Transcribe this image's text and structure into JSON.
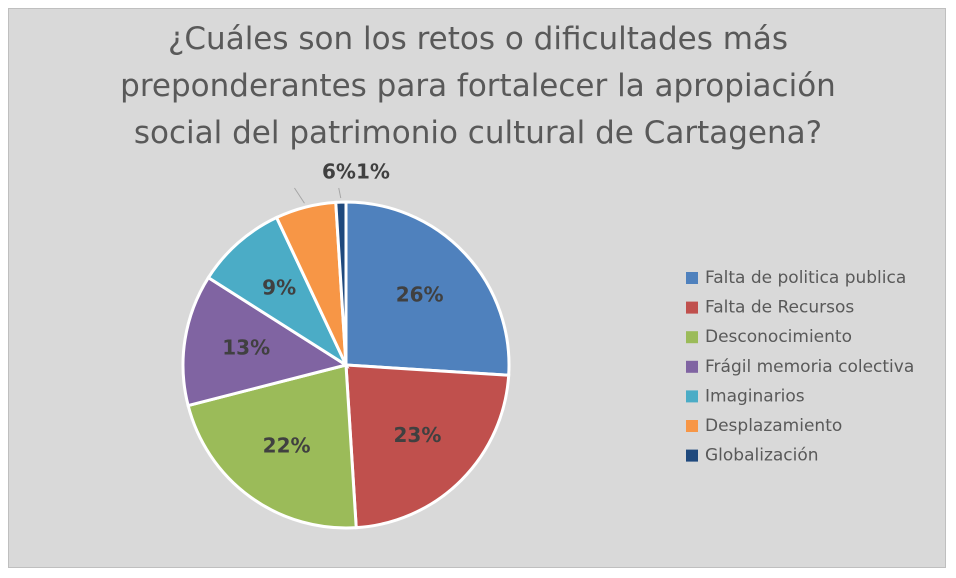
{
  "chart_data": {
    "type": "pie",
    "title": "¿Cuáles son los retos o dificultades más preponderantes para fortalecer la apropiación social del patrimonio cultural de Cartagena?",
    "categories": [
      "Falta de politica publica",
      "Falta de Recursos",
      "Desconocimiento",
      "Frágil memoria colectiva",
      "Imaginarios",
      "Desplazamiento",
      "Globalización"
    ],
    "values": [
      26,
      23,
      22,
      13,
      9,
      6,
      1
    ],
    "value_labels": [
      "26%",
      "23%",
      "22%",
      "13%",
      "9%",
      "6%",
      "1%"
    ],
    "colors": [
      "#4f81bd",
      "#c0504d",
      "#9bbb59",
      "#8064a2",
      "#4bacc6",
      "#f79646",
      "#1f497d"
    ],
    "legend": "right"
  }
}
